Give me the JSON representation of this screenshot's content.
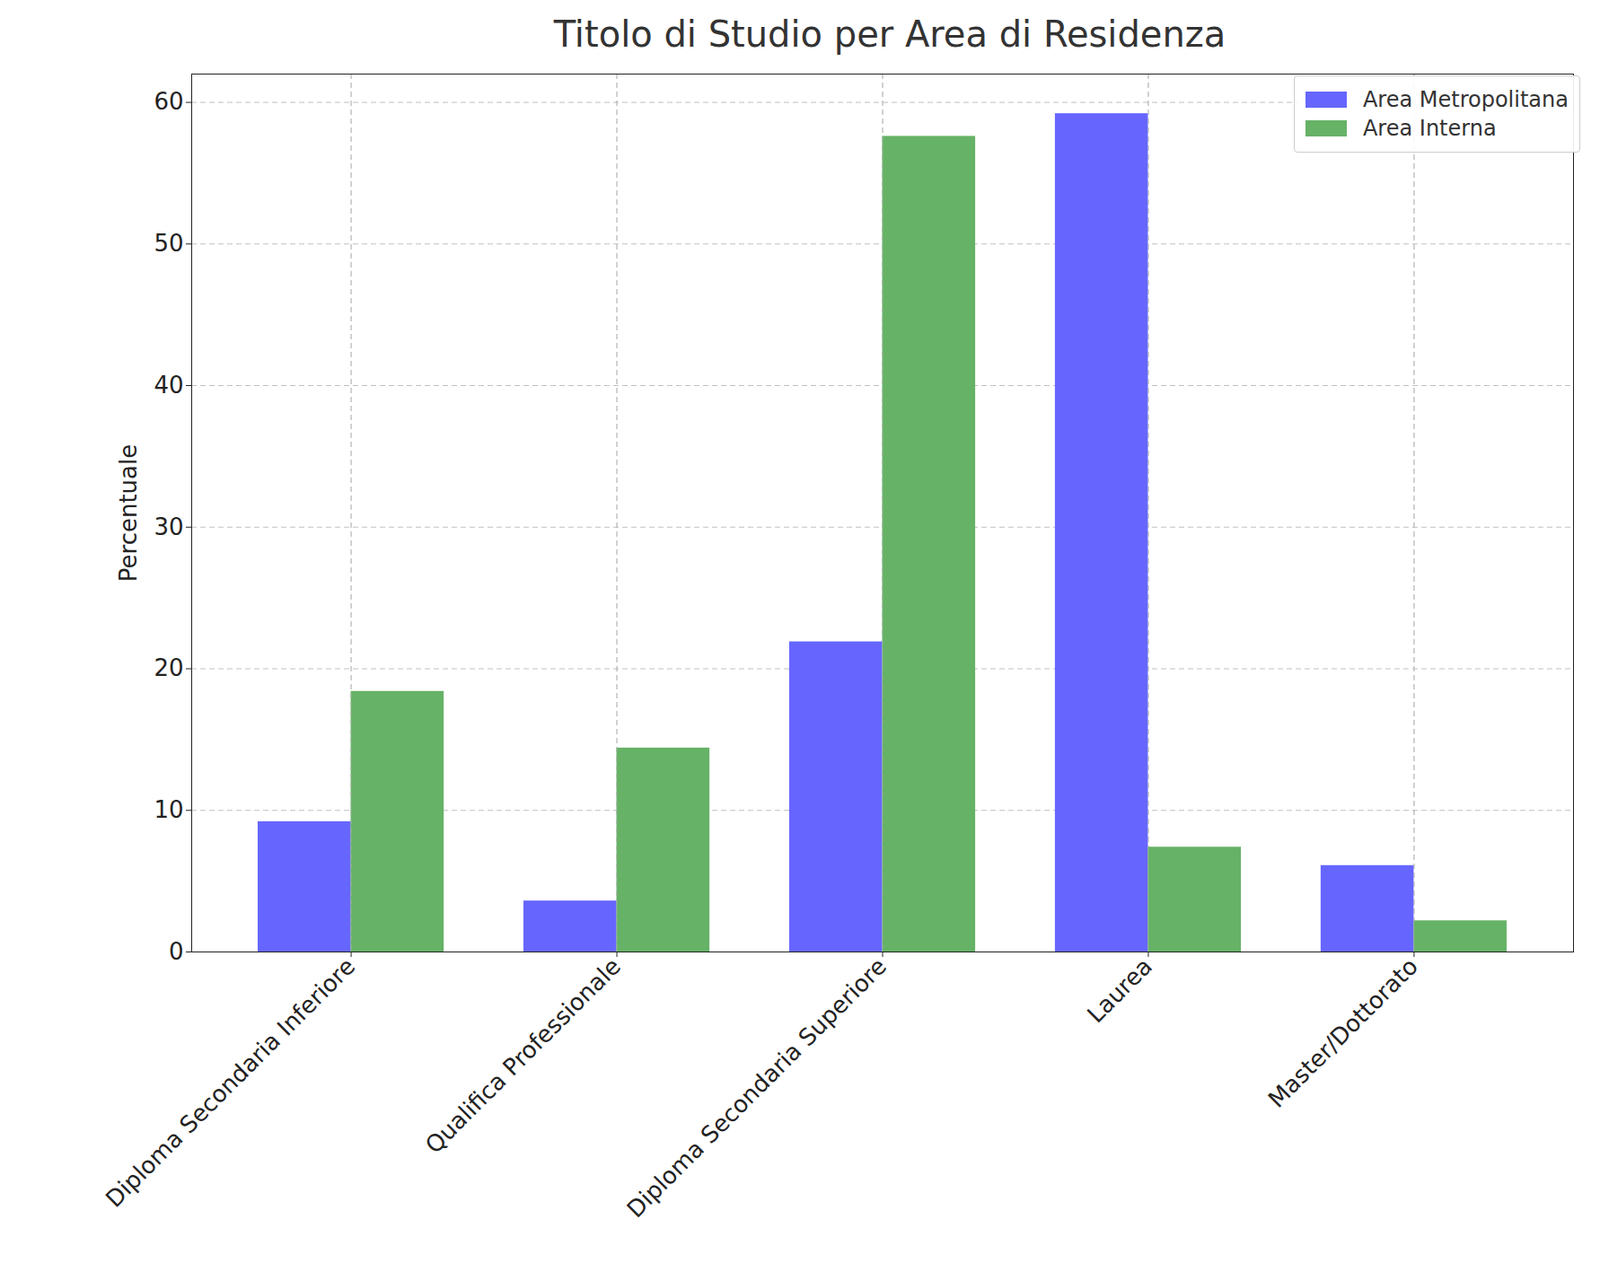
{
  "chart_data": {
    "type": "bar",
    "title": "Titolo di Studio per Area di Residenza",
    "y_label": "Percentuale",
    "categories": [
      "Diploma Secondaria Inferiore",
      "Qualifica Professionale",
      "Diploma Secondaria Superiore",
      "Laurea",
      "Master/Dottorato"
    ],
    "series": [
      {
        "name": "Area Metropolitana",
        "color": "#6666ff",
        "values": [
          9.2,
          3.6,
          21.9,
          59.2,
          6.1
        ]
      },
      {
        "name": "Area Interna",
        "color": "#66b266",
        "values": [
          18.4,
          14.4,
          57.6,
          7.4,
          2.2
        ]
      }
    ],
    "ylim": [
      0,
      62
    ],
    "yticks": [
      0,
      10,
      20,
      30,
      40,
      50,
      60
    ],
    "grid": true,
    "legend": "upper right"
  }
}
